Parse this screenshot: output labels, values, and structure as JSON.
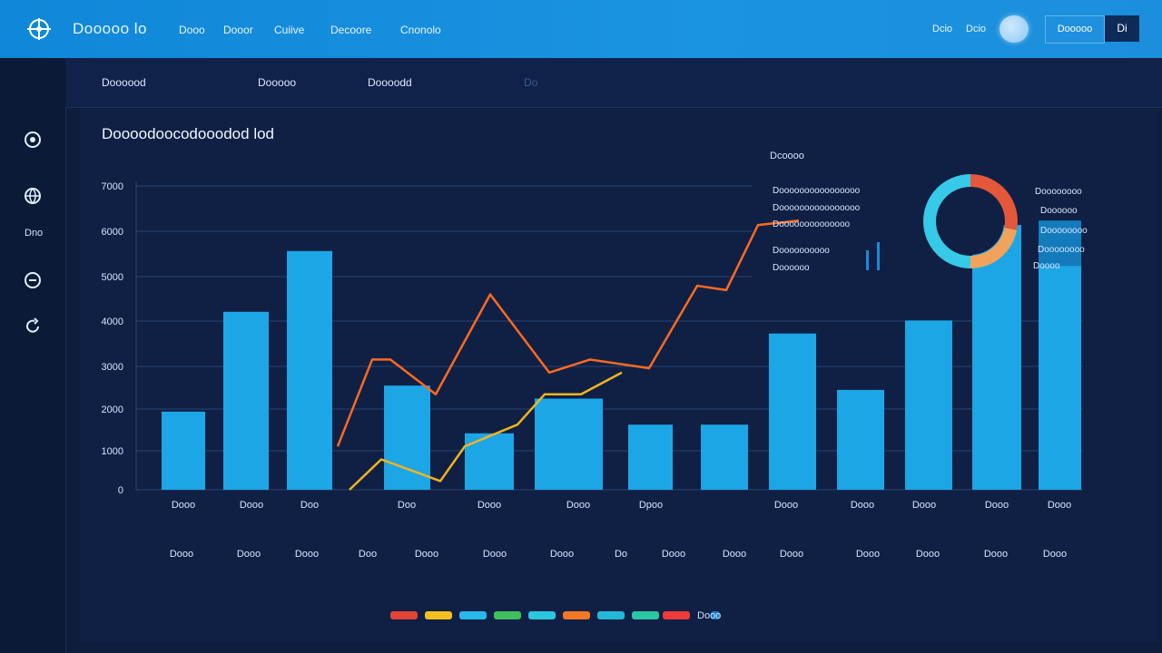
{
  "header": {
    "brand": "Dooooo lo",
    "nav": [
      "Dooo",
      "Dooor",
      "Cuiive",
      "Decoore",
      "Cnonolo"
    ],
    "right_links": [
      "Dcio",
      "Dcio"
    ],
    "button_label": "Dooooo",
    "square_label": "Di"
  },
  "sidebar": {
    "items": [
      {
        "icon": "gear-icon"
      },
      {
        "icon": "globe-icon",
        "label": "Dno"
      },
      {
        "icon": "settings-icon"
      },
      {
        "icon": "refresh-icon"
      }
    ]
  },
  "tabs": [
    "Doooood",
    "Dooooo",
    "Doooodd",
    "Do"
  ],
  "chart_title": "Doooodoocodooodod lod",
  "chart_data": {
    "type": "bar",
    "title": "Doooodoocodooodod lod",
    "yticks": [
      "0",
      "1000",
      "2000",
      "3000",
      "4000",
      "5000",
      "6000",
      "7000"
    ],
    "ylim": [
      0,
      7000
    ],
    "categories": [
      "Dooo",
      "Dooo",
      "Doo",
      "Doo",
      "Dooo",
      "Dooo",
      "Dpoo",
      "Dooo",
      "Dooo",
      "Dooo",
      "Dooo",
      "Dooo"
    ],
    "category_positions": [
      202,
      277,
      341,
      448,
      539,
      637,
      717,
      866,
      950,
      1018,
      1098,
      1167
    ],
    "second_row_labels": [
      "Dooo",
      "Dooo",
      "Dooo",
      "Doo",
      "Dooo",
      "Dooo",
      "Dooo",
      "Do",
      "Dooo",
      "Dooo",
      "Dooo",
      "Dooo",
      "Dooo",
      "Dooo",
      "Dooo"
    ],
    "second_row_positions": [
      200,
      274,
      338,
      405,
      470,
      545,
      619,
      684,
      742,
      809,
      872,
      956,
      1022,
      1097,
      1162
    ],
    "bars": [
      {
        "x0": 178,
        "x1": 226,
        "value": 1800
      },
      {
        "x0": 246,
        "x1": 296,
        "value": 4100
      },
      {
        "x0": 316,
        "x1": 366,
        "value": 5500
      },
      {
        "x0": 423,
        "x1": 474,
        "value": 2400
      },
      {
        "x0": 512,
        "x1": 566,
        "value": 1300
      },
      {
        "x0": 589,
        "x1": 664,
        "value": 2100
      },
      {
        "x0": 692,
        "x1": 741,
        "value": 1500
      },
      {
        "x0": 772,
        "x1": 824,
        "value": 1500
      },
      {
        "x0": 847,
        "x1": 899,
        "value": 3600
      },
      {
        "x0": 922,
        "x1": 974,
        "value": 2300
      },
      {
        "x0": 997,
        "x1": 1049,
        "value": 3900
      },
      {
        "x0": 1071,
        "x1": 1125,
        "value": 6100
      },
      {
        "x0": 1144,
        "x1": 1191,
        "value": 6200
      }
    ],
    "series": [
      {
        "color": "#ff6a1f",
        "points": [
          [
            372,
            1000
          ],
          [
            410,
            3000
          ],
          [
            430,
            3000
          ],
          [
            480,
            2200
          ],
          [
            540,
            4500
          ],
          [
            605,
            2700
          ],
          [
            650,
            3000
          ],
          [
            715,
            2800
          ],
          [
            768,
            4700
          ],
          [
            800,
            4600
          ],
          [
            835,
            6100
          ],
          [
            880,
            6200
          ]
        ]
      },
      {
        "color": "#f0b41f",
        "points": [
          [
            385,
            0
          ],
          [
            420,
            700
          ],
          [
            485,
            200
          ],
          [
            512,
            1000
          ],
          [
            570,
            1500
          ],
          [
            600,
            2200
          ],
          [
            640,
            2200
          ],
          [
            685,
            2700
          ]
        ]
      }
    ]
  },
  "legend_title": "Dcoooo",
  "legend_list": [
    "Doooooooooooooooo",
    "Doooooooooooooooo",
    "Doooooooooooooo",
    "Doooooooooo",
    "Doooooo"
  ],
  "donut": {
    "segments": [
      {
        "value": 28,
        "color": "#e5573a"
      },
      {
        "value": 22,
        "color": "#f1a35c"
      },
      {
        "value": 50,
        "color": "#37c9e8"
      }
    ],
    "labels": [
      "Doooooooo",
      "Doooooo",
      "Doooooooo",
      "Doooooooo",
      "Doooo"
    ]
  },
  "legend_colors": [
    "#e14436",
    "#f2c11f",
    "#27b9ea",
    "#3fbe5b",
    "#2ac6de",
    "#f37725",
    "#22b9d6",
    "#2bc6a4",
    "#ef3a3a",
    "#1a7ed0"
  ],
  "legend_label": "Dooo"
}
